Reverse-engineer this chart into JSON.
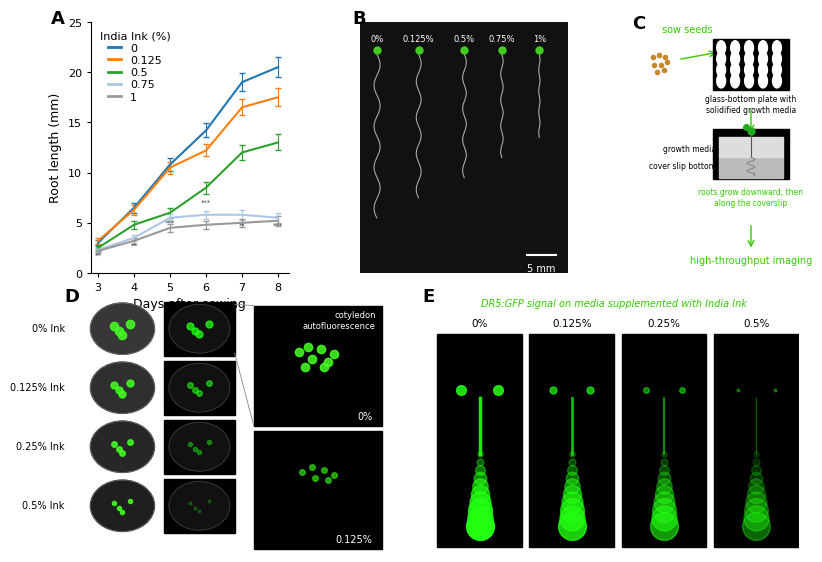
{
  "plot_A": {
    "days": [
      3,
      4,
      5,
      6,
      7,
      8
    ],
    "series": {
      "0": {
        "mean": [
          3.0,
          6.5,
          10.8,
          14.2,
          19.0,
          20.5
        ],
        "sem": [
          0.3,
          0.5,
          0.6,
          0.7,
          0.9,
          1.0
        ],
        "color": "#1f77b4",
        "label": "0"
      },
      "0.125": {
        "mean": [
          3.2,
          6.3,
          10.5,
          12.2,
          16.5,
          17.5
        ],
        "sem": [
          0.3,
          0.5,
          0.6,
          0.6,
          0.8,
          0.9
        ],
        "color": "#ff7f0e",
        "label": "0.125"
      },
      "0.5": {
        "mean": [
          2.5,
          4.8,
          6.0,
          8.5,
          12.0,
          13.0
        ],
        "sem": [
          0.3,
          0.4,
          0.5,
          0.6,
          0.7,
          0.8
        ],
        "color": "#2ca02c",
        "label": "0.5"
      },
      "0.75": {
        "mean": [
          2.3,
          3.5,
          5.5,
          5.8,
          5.8,
          5.5
        ],
        "sem": [
          0.2,
          0.3,
          0.4,
          0.4,
          0.5,
          0.5
        ],
        "color": "#aec7e8",
        "label": "0.75"
      },
      "1": {
        "mean": [
          2.2,
          3.2,
          4.5,
          4.8,
          5.0,
          5.2
        ],
        "sem": [
          0.2,
          0.3,
          0.4,
          0.4,
          0.4,
          0.5
        ],
        "color": "#999999",
        "label": "1"
      }
    },
    "xlabel": "Days after sowing",
    "ylabel": "Root length (mm)",
    "ylim": [
      0,
      25
    ],
    "xlim": [
      3,
      8
    ],
    "legend_title": "India Ink (%)"
  },
  "panel_C": {
    "sow_seeds_text": "sow seeds",
    "plate_text": "glass-bottom plate with\nsolidified growth media",
    "growth_media_text": "growth media",
    "cover_slip_text": "cover slip bottom",
    "roots_text": "roots grow downward, then\nalong the coverslip",
    "imaging_text": "high-throughput imaging",
    "arrow_color": "#33cc00",
    "black_text_color": "#000000"
  },
  "panel_E": {
    "title": "DR5:GFP signal on media supplemented with India Ink",
    "concentrations": [
      "0%",
      "0.125%",
      "0.25%",
      "0.5%"
    ],
    "title_color": "#33cc00"
  },
  "panel_D": {
    "labels": [
      "0% Ink",
      "0.125% Ink",
      "0.25% Ink",
      "0.5% Ink"
    ]
  },
  "background_color": "#ffffff",
  "figure_label_fontsize": 13,
  "axis_label_fontsize": 9,
  "tick_fontsize": 8,
  "legend_fontsize": 8
}
